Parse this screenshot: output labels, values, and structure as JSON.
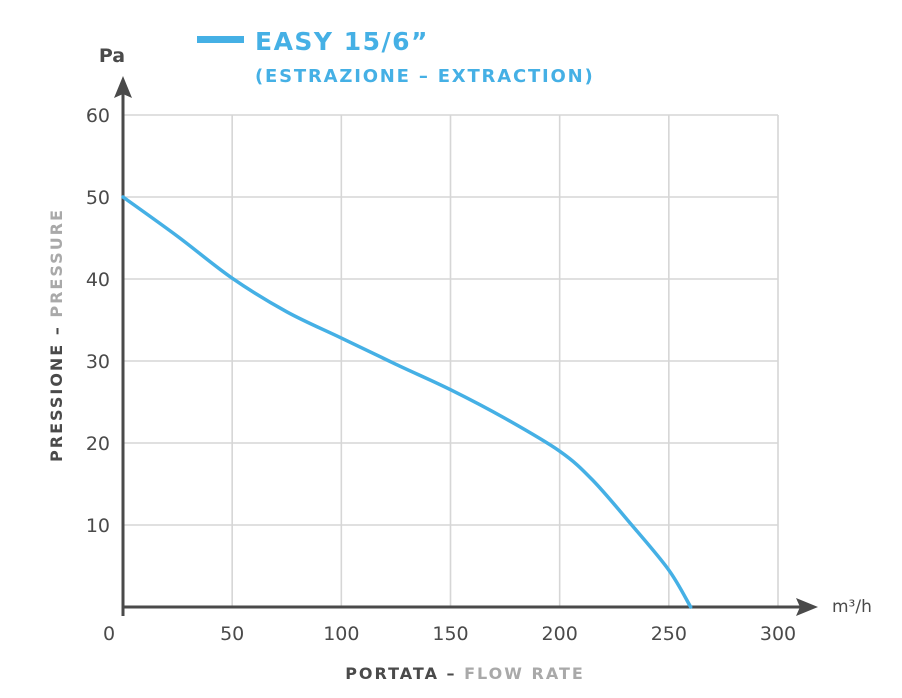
{
  "chart_data": {
    "type": "line",
    "title": "EASY 15/6”",
    "subtitle": "(ESTRAZIONE – EXTRACTION)",
    "xlabel_main": "PORTATA",
    "xlabel_sep": " – ",
    "xlabel_alt": "FLOW RATE",
    "ylabel_main": "PRESSIONE",
    "ylabel_sep": " – ",
    "ylabel_alt": "PRESSURE",
    "x_unit": "m³/h",
    "y_unit": "Pa",
    "xlim": [
      0,
      300
    ],
    "ylim": [
      0,
      60
    ],
    "x_ticks": [
      "0",
      "50",
      "100",
      "150",
      "200",
      "250",
      "300"
    ],
    "y_ticks": [
      "10",
      "20",
      "30",
      "40",
      "50",
      "60"
    ],
    "x_tick_values": [
      0,
      50,
      100,
      150,
      200,
      250,
      300
    ],
    "y_tick_values": [
      10,
      20,
      30,
      40,
      50,
      60
    ],
    "grid": true,
    "legend_position": "top",
    "series": [
      {
        "name": "EASY 15/6”",
        "color": "#45b0e5",
        "x": [
          0,
          25,
          50,
          75,
          100,
          125,
          150,
          175,
          200,
          215,
          233,
          250,
          260
        ],
        "y": [
          50,
          45.2,
          40.1,
          36,
          32.8,
          29.6,
          26.5,
          23,
          19,
          15.5,
          10,
          4.5,
          0
        ]
      }
    ],
    "colors": {
      "axis": "#4a4a4a",
      "grid": "#d6d6d6",
      "label_alt": "#a9a9a9",
      "accent": "#45b0e5"
    }
  }
}
